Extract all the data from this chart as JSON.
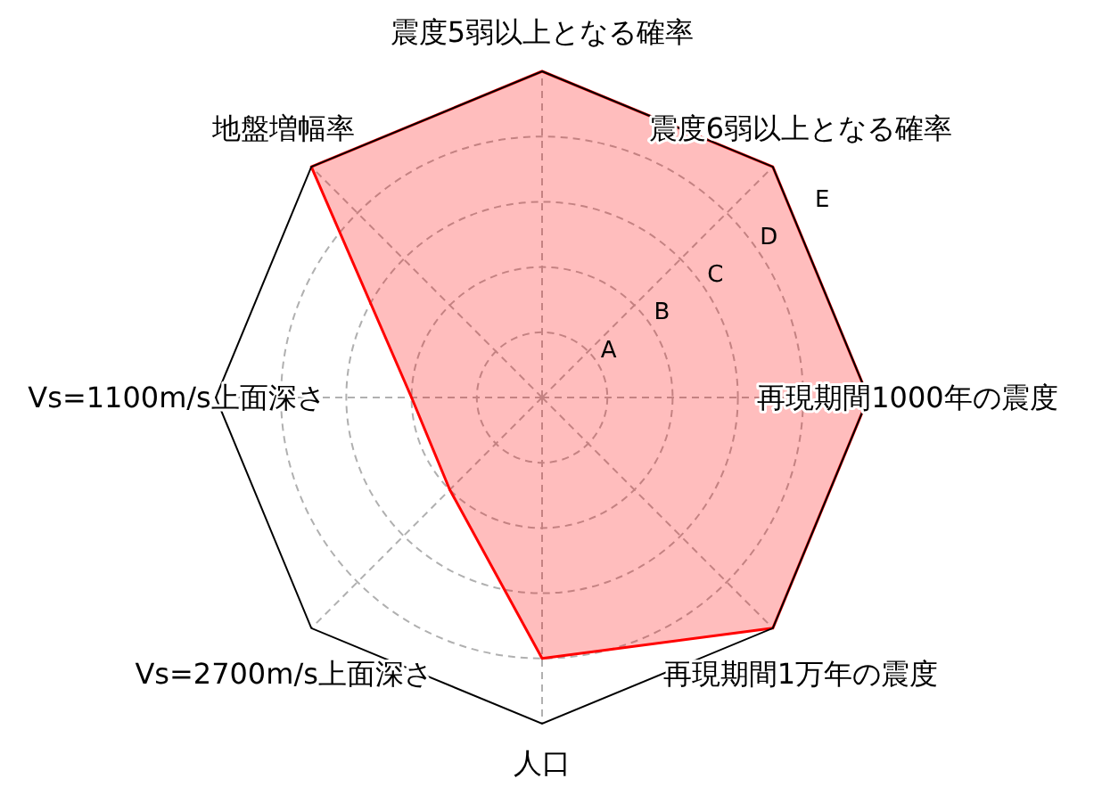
{
  "chart_data": {
    "type": "radar",
    "categories": [
      "震度5弱以上となる確率",
      "震度6弱以上となる確率",
      "再現期間1000年の震度",
      "再現期間1万年の震度",
      "人口",
      "Vs=2700m/s上面深さ",
      "Vs=1100m/s上面深さ",
      "地盤増幅率"
    ],
    "series": [
      {
        "color": "#ff0000",
        "values": [
          5,
          5,
          5,
          5,
          4,
          2,
          2,
          5
        ]
      }
    ],
    "ylim": [
      0,
      5
    ],
    "yticks": [
      {
        "value": 1,
        "label": "A"
      },
      {
        "value": 2,
        "label": "B"
      },
      {
        "value": 3,
        "label": "C"
      },
      {
        "value": 4,
        "label": "D"
      },
      {
        "value": 5,
        "label": "E"
      }
    ],
    "grid": true
  }
}
